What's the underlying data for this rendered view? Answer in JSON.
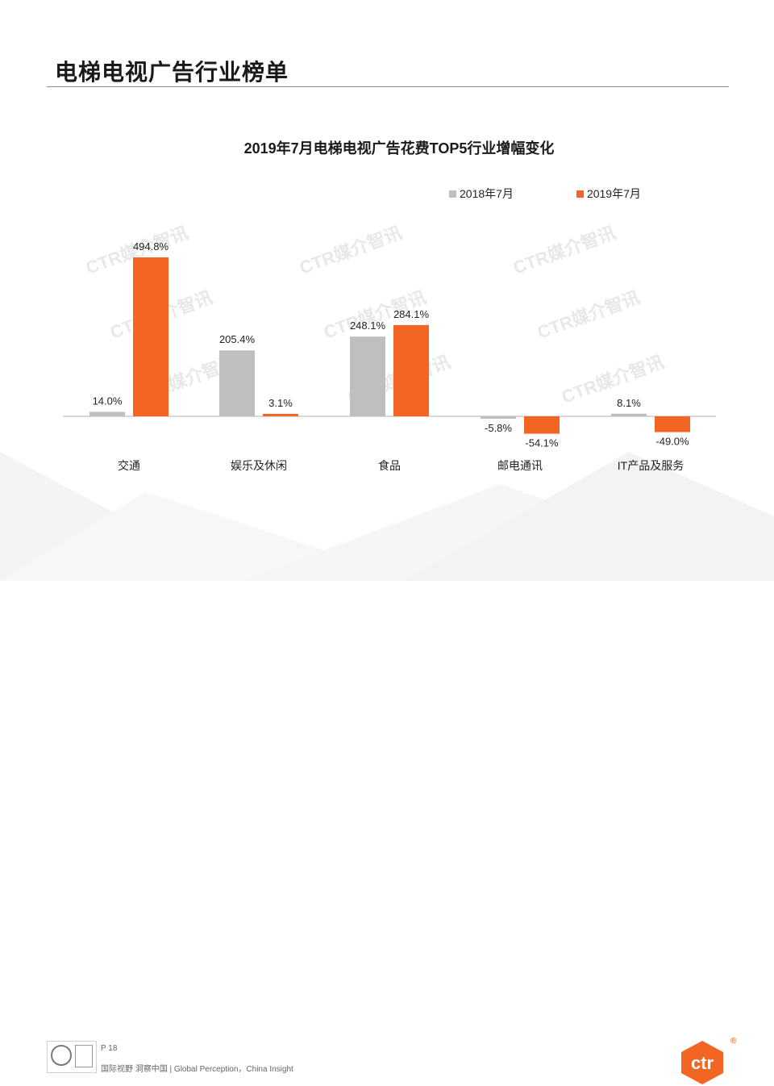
{
  "header": {
    "title": "电梯电视广告行业榜单"
  },
  "chart_data": {
    "type": "bar",
    "title": "2019年7月电梯电视广告花费TOP5行业增幅变化",
    "categories": [
      "交通",
      "娱乐及休闲",
      "食品",
      "邮电通讯",
      "IT产品及服务"
    ],
    "series": [
      {
        "name": "2018年7月",
        "values": [
          14.0,
          205.4,
          248.1,
          -5.8,
          8.1
        ],
        "labels": [
          "14.0%",
          "205.4%",
          "248.1%",
          "-5.8%",
          "8.1%"
        ],
        "color": "#bfbfbf"
      },
      {
        "name": "2019年7月",
        "values": [
          494.8,
          3.1,
          284.1,
          -54.1,
          -49.0
        ],
        "labels": [
          "494.8%",
          "3.1%",
          "284.1%",
          "-54.1%",
          "-49.0%"
        ],
        "color": "#f26522"
      }
    ],
    "ylim": [
      -60,
      500
    ],
    "legend_position": "top-right",
    "grid": false
  },
  "watermark": {
    "text": "CTR媒介智讯"
  },
  "footer": {
    "page": "P 18",
    "tagline": "国际视野  洞察中国 | Global Perception，China Insight"
  },
  "logo": {
    "text": "ctr",
    "color": "#f26522"
  }
}
